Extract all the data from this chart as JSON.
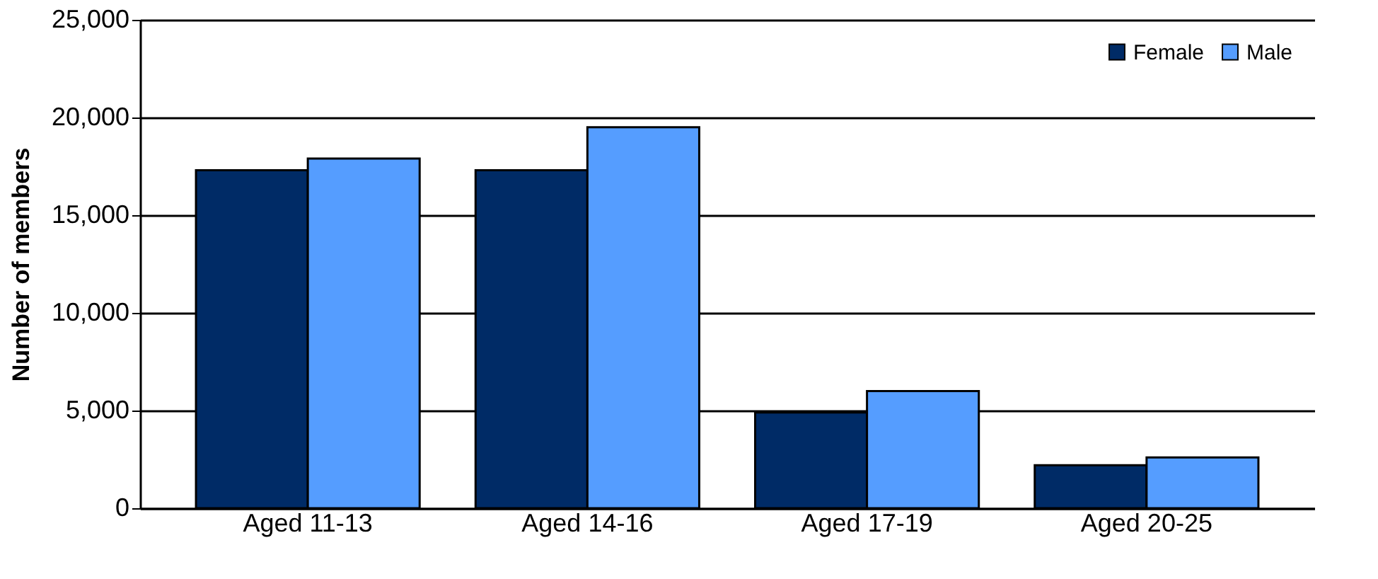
{
  "chart_data": {
    "type": "bar",
    "ylabel": "Number of members",
    "categories": [
      "Aged 11-13",
      "Aged 14-16",
      "Aged 17-19",
      "Aged 20-25"
    ],
    "series": [
      {
        "name": "Female",
        "color": "#002b66",
        "values": [
          17300,
          17300,
          4900,
          2200
        ]
      },
      {
        "name": "Male",
        "color": "#559dff",
        "values": [
          17900,
          19500,
          6000,
          2600
        ]
      }
    ],
    "ylim": [
      0,
      25000
    ],
    "yticks": [
      0,
      {
        "value": 5000,
        "label": "5,000"
      },
      {
        "value": 10000,
        "label": "10,000"
      },
      {
        "value": 15000,
        "label": "15,000"
      },
      {
        "value": 20000,
        "label": "20,000"
      },
      {
        "value": 25000,
        "label": "25,000"
      }
    ],
    "grid": "y",
    "legend": "top right"
  }
}
